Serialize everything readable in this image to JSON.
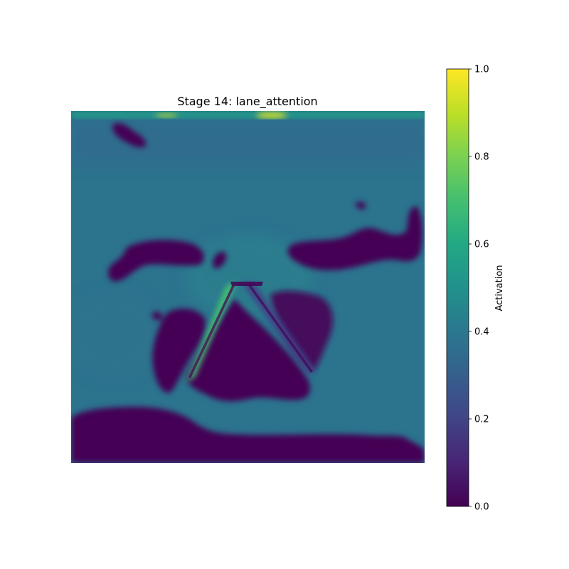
{
  "chart_data": {
    "type": "heatmap",
    "title": "Stage 14: lane_attention",
    "xlabel": "",
    "ylabel": "",
    "axes_visible": false,
    "colormap": "viridis",
    "colorbar": {
      "label": "Activation",
      "range": [
        0,
        1
      ],
      "ticks": [
        0.0,
        0.2,
        0.4,
        0.6,
        0.8,
        1.0
      ],
      "tick_labels": [
        "0.0",
        "0.2",
        "0.4",
        "0.6",
        "0.8",
        "1.0"
      ]
    },
    "background_level": 0.38,
    "low_regions": [
      {
        "name": "top-left-blob",
        "level": 0.0
      },
      {
        "name": "left-mid-blob",
        "level": 0.0
      },
      {
        "name": "right-mid-blob",
        "level": 0.0
      },
      {
        "name": "central-triangle",
        "level": 0.0
      },
      {
        "name": "left-lower-blob",
        "level": 0.0
      },
      {
        "name": "right-inner-blob",
        "level": 0.02
      },
      {
        "name": "bottom-band",
        "level": 0.0
      }
    ],
    "high_regions": [
      {
        "name": "top-edge-band",
        "level": 0.55
      },
      {
        "name": "top-edge-hotspot",
        "level": 0.95
      },
      {
        "name": "left-diagonal-line",
        "level": 0.7
      },
      {
        "name": "right-diagonal-line",
        "level": 0.2
      }
    ]
  }
}
